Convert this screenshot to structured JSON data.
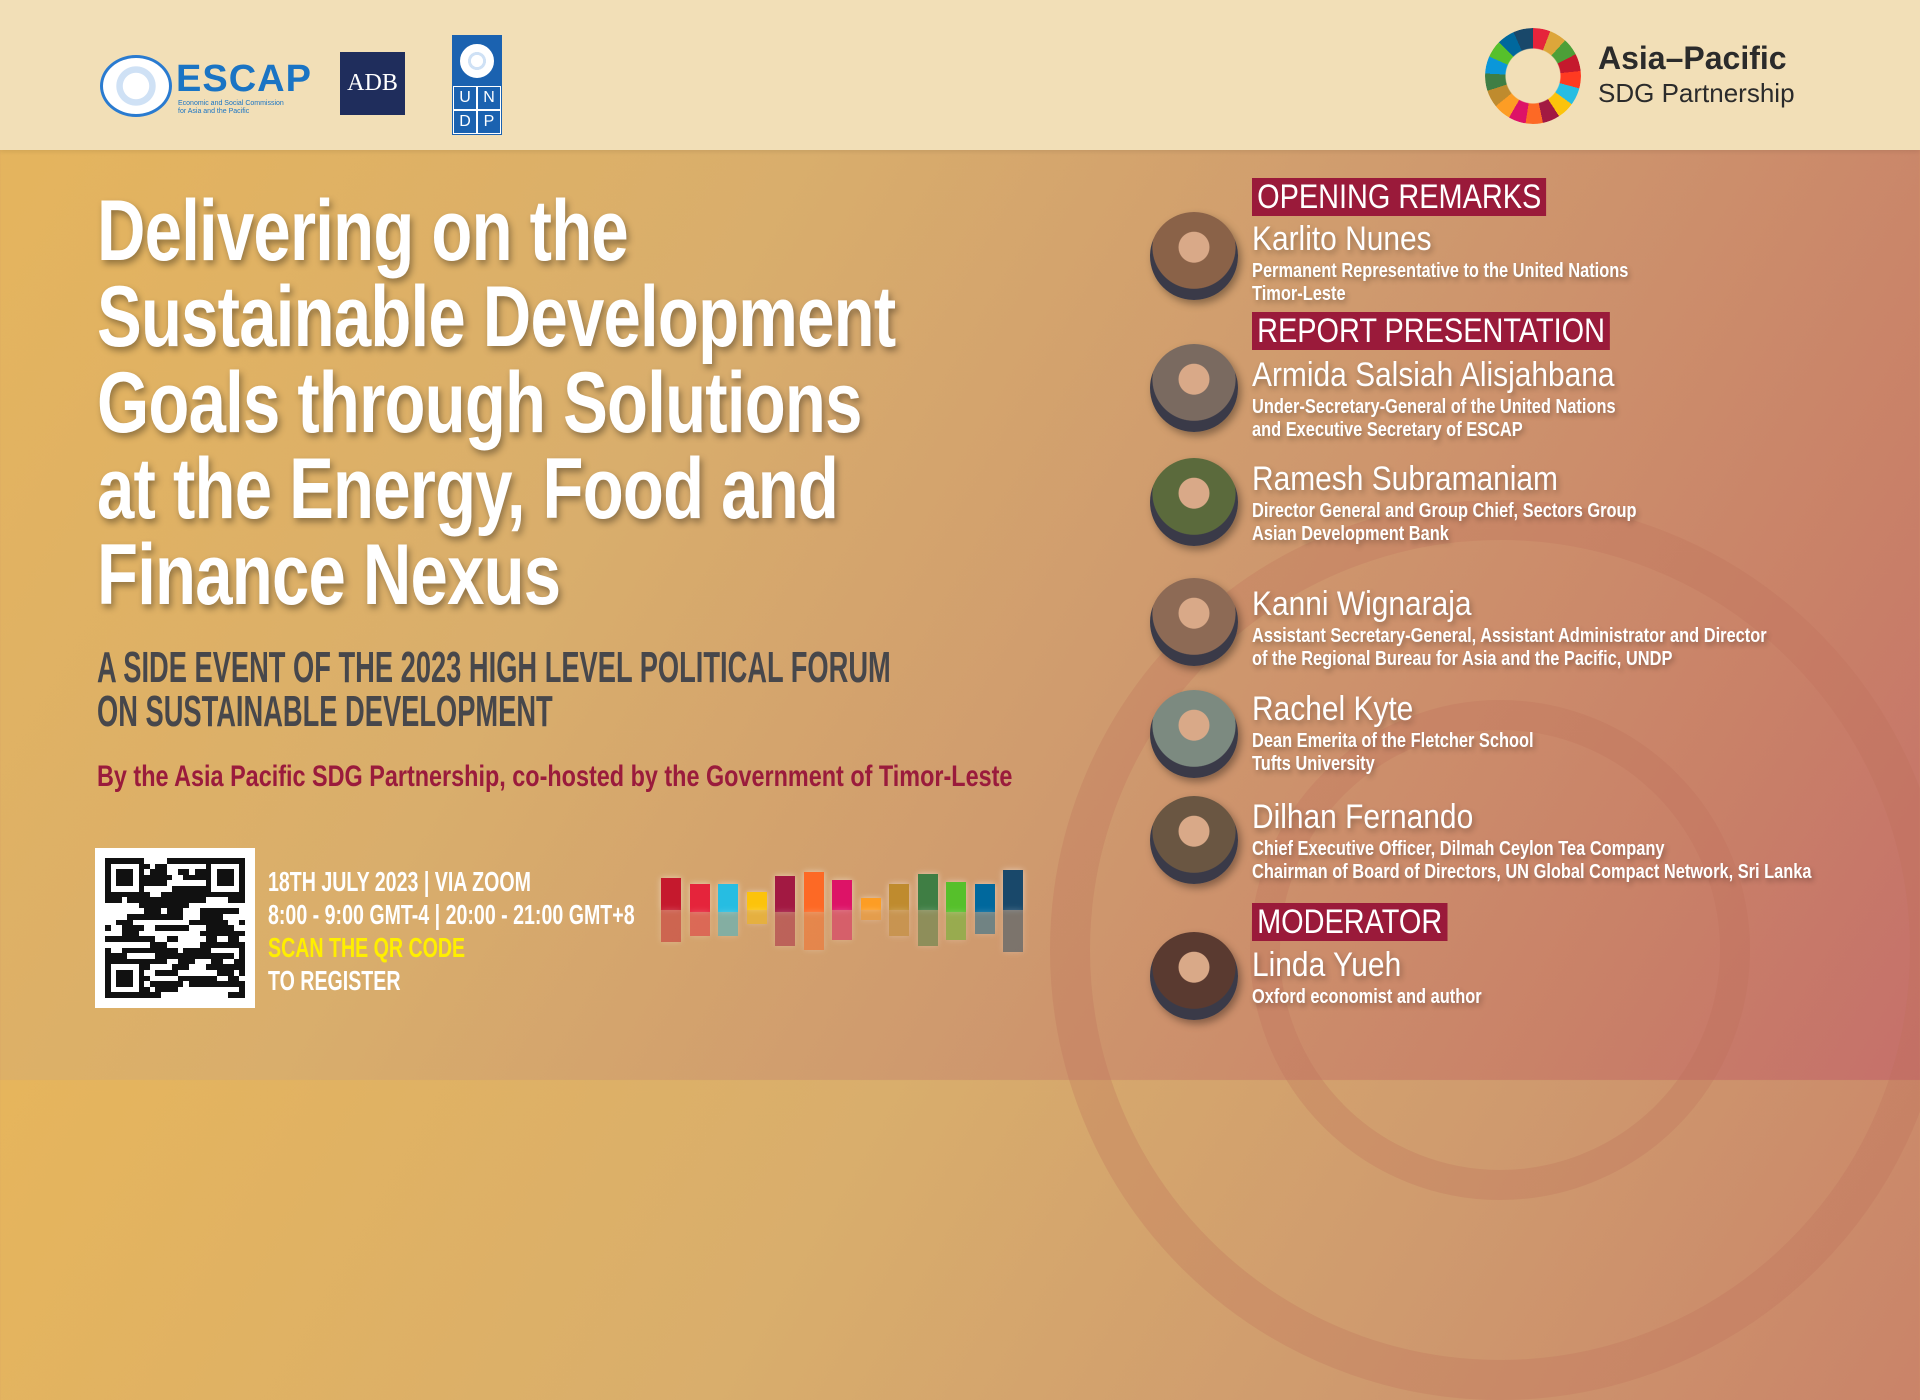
{
  "header": {
    "logos": {
      "escap": {
        "name": "ESCAP",
        "subtitle_line1": "Economic and Social Commission",
        "subtitle_line2": "for Asia and the Pacific"
      },
      "adb": "ADB",
      "undp": [
        "U",
        "N",
        "D",
        "P"
      ]
    },
    "brand": {
      "line1": "Asia–Pacific",
      "line2": "SDG Partnership"
    }
  },
  "main": {
    "title_lines": [
      "Delivering on the",
      "Sustainable Development",
      "Goals through Solutions",
      "at the Energy, Food and",
      "Finance Nexus"
    ],
    "subtitle_lines": [
      "A SIDE EVENT OF THE 2023 HIGH LEVEL POLITICAL FORUM",
      "ON SUSTAINABLE DEVELOPMENT"
    ],
    "hosted_by": "By the Asia Pacific SDG Partnership, co-hosted by the Government of Timor-Leste"
  },
  "event": {
    "date_line": "18TH JULY 2023 | VIA ZOOM",
    "time_line": "8:00 - 9:00 GMT-4 | 20:00 - 21:00 GMT+8",
    "cta_line1": "SCAN THE QR CODE",
    "cta_line2": "TO REGISTER",
    "cta_color": "#ffef00"
  },
  "sdg_colors": [
    "#c5192d",
    "#e5243b",
    "#26bde2",
    "#fcc30b",
    "#a21942",
    "#fd6925",
    "#dd1367",
    "#fd9d24",
    "#bf8b2e",
    "#3f7e44",
    "#56c02b",
    "#00689d",
    "#19486a"
  ],
  "accent_color": "#9a1a3a",
  "sections": {
    "opening": "OPENING REMARKS",
    "report": "REPORT PRESENTATION",
    "moderator": "MODERATOR"
  },
  "speakers": [
    {
      "name": "Karlito Nunes",
      "title": [
        "Permanent Representative to the United Nations",
        "Timor-Leste"
      ]
    },
    {
      "name": "Armida Salsiah Alisjahbana",
      "title": [
        "Under-Secretary-General of the United Nations",
        "and Executive Secretary of ESCAP"
      ]
    },
    {
      "name": "Ramesh Subramaniam",
      "title": [
        "Director General and Group Chief, Sectors Group",
        "Asian Development Bank"
      ]
    },
    {
      "name": "Kanni Wignaraja",
      "title": [
        "Assistant Secretary-General, Assistant Administrator and Director",
        "of the Regional Bureau for Asia and the Pacific, UNDP"
      ]
    },
    {
      "name": "Rachel Kyte",
      "title": [
        "Dean Emerita of the Fletcher School",
        "Tufts University"
      ]
    },
    {
      "name": "Dilhan Fernando",
      "title": [
        "Chief Executive Officer, Dilmah Ceylon Tea Company",
        "Chairman of Board of Directors, UN Global Compact Network, Sri Lanka"
      ]
    },
    {
      "name": "Linda Yueh",
      "title": [
        "Oxford economist and author"
      ]
    }
  ]
}
